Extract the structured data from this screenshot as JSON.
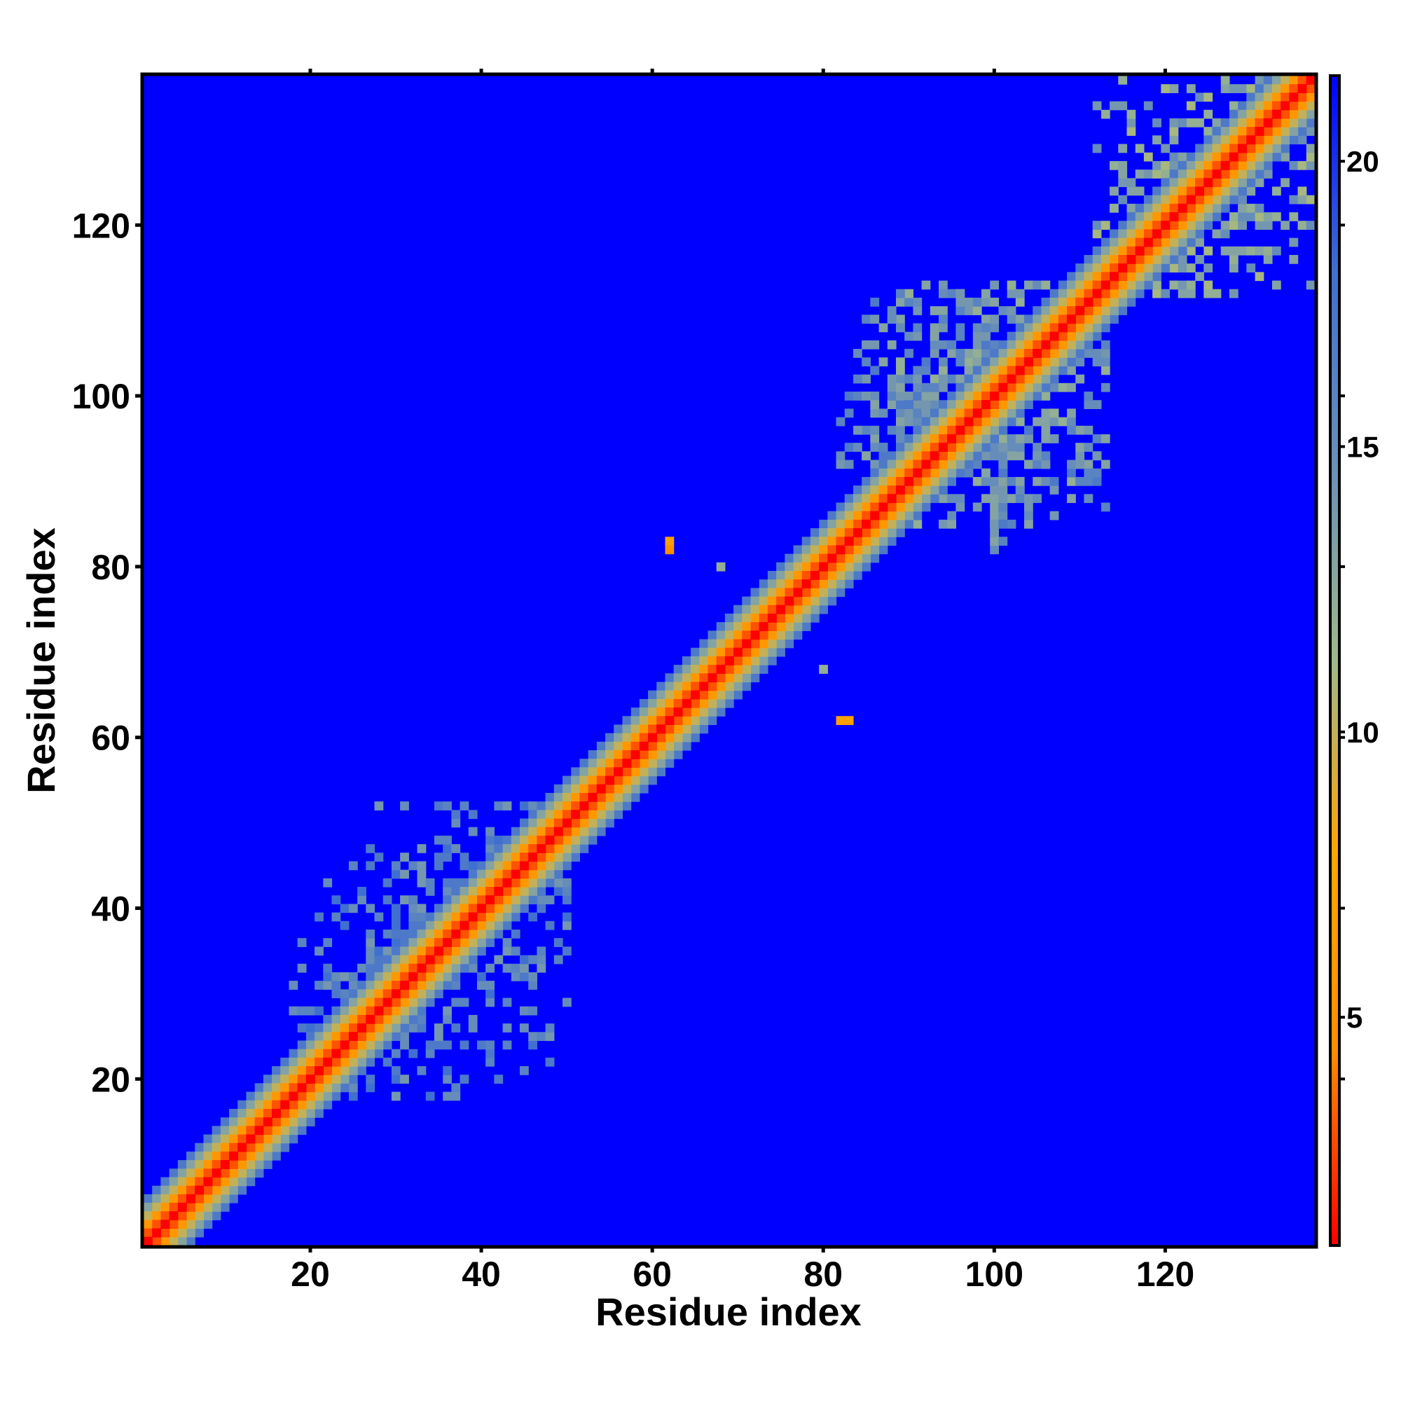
{
  "chart_data": {
    "type": "heatmap",
    "title": "",
    "xlabel": "Residue index",
    "ylabel": "Residue index",
    "xlim": [
      0.5,
      137.5
    ],
    "ylim": [
      0.5,
      137.5
    ],
    "x_ticks": [
      20,
      40,
      60,
      80,
      100,
      120
    ],
    "y_ticks": [
      20,
      40,
      60,
      80,
      100,
      120
    ],
    "colorbar": {
      "ticks": [
        5,
        10,
        15,
        20
      ],
      "range": [
        1,
        21.5
      ],
      "colors": [
        "#ff0000",
        "#ff8c00",
        "#ffa500",
        "#9fb88a",
        "#6a8fb8",
        "#3f6fd0",
        "#0000ff"
      ]
    },
    "background_value": 21.5,
    "bands": [
      {
        "offset": 0,
        "value": 1
      },
      {
        "offset": 1,
        "value": 3
      },
      {
        "offset": 2,
        "value": 6
      },
      {
        "offset": 3,
        "value": 10
      },
      {
        "offset": 4,
        "value": 13
      },
      {
        "offset": 5,
        "value": 17
      }
    ],
    "regions": [
      {
        "x": [
          85,
          113
        ],
        "y": [
          85,
          113
        ],
        "value": 12
      },
      {
        "x": [
          82,
          100
        ],
        "y": [
          92,
          113
        ],
        "value": 13
      },
      {
        "x": [
          100,
          113
        ],
        "y": [
          82,
          96
        ],
        "value": 13
      },
      {
        "x": [
          112,
          137
        ],
        "y": [
          112,
          137
        ],
        "value": 11
      },
      {
        "x": [
          18,
          50
        ],
        "y": [
          18,
          52
        ],
        "value": 14
      }
    ],
    "points": [
      {
        "x": 62,
        "y": 83,
        "value": 7
      },
      {
        "x": 62,
        "y": 82,
        "value": 5
      },
      {
        "x": 82,
        "y": 62,
        "value": 7
      },
      {
        "x": 83,
        "y": 62,
        "value": 7
      },
      {
        "x": 80,
        "y": 68,
        "value": 12
      },
      {
        "x": 68,
        "y": 80,
        "value": 12
      }
    ]
  }
}
